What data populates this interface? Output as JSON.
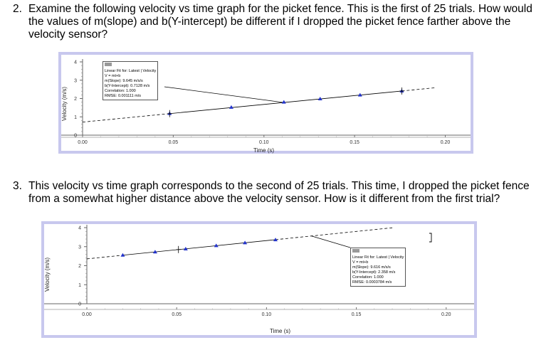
{
  "q2": {
    "number": "2.",
    "text": "Examine the following velocity vs time graph for the picket fence. This is the first of 25 trials. How would the values of m(slope) and b(Y-intercept) be different if I dropped the picket fence farther above the velocity sensor?"
  },
  "q3": {
    "number": "3.",
    "text": "This velocity vs time graph corresponds to the second of 25 trials. This time, I dropped the picket fence from a somewhat higher distance above the velocity sensor. How is it different from the first trial?"
  },
  "graph1": {
    "ylabel": "Velocity (m/s)",
    "xlabel": "Time (s)",
    "yticks": [
      "0",
      "1",
      "2",
      "3",
      "4"
    ],
    "xticks": [
      "0.00",
      "0.05",
      "0.10",
      "0.15",
      "0.20"
    ],
    "fit": {
      "title": "Linear Fit for: Latest | Velocity",
      "eq": "V = mt+b",
      "m": "m(Slope): 9.645 m/s/s",
      "b": "b(Y-Intercept): 0.7128 m/s",
      "corr": "Correlation: 1.000",
      "rmse": "RMSE: 0.001111 m/s"
    }
  },
  "graph2": {
    "ylabel": "Velocity (m/s)",
    "xlabel": "Time (s)",
    "yticks": [
      "0",
      "1",
      "2",
      "3",
      "4"
    ],
    "xticks": [
      "0.00",
      "0.05",
      "0.10",
      "0.15",
      "0.20"
    ],
    "fit": {
      "title": "Linear Fit for: Latest | Velocity",
      "eq": "V = mt+b",
      "m": "m(Slope): 9.616 m/s/s",
      "b": "b(Y-Intercept): 2.358 m/s",
      "corr": "Correlation: 1.000",
      "rmse": "RMSE: 0.0003784 m/s"
    }
  },
  "chart_data": [
    {
      "type": "line",
      "xlabel": "Time (s)",
      "ylabel": "Velocity (m/s)",
      "xlim": [
        0,
        0.21
      ],
      "ylim": [
        0,
        4
      ],
      "x": [
        0.048,
        0.082,
        0.111,
        0.131,
        0.153,
        0.176
      ],
      "series": [
        {
          "values": [
            1.18,
            1.52,
            1.8,
            1.98,
            2.19,
            2.41
          ]
        }
      ],
      "fit_line": {
        "slope": 9.645,
        "intercept": 0.7128
      }
    },
    {
      "type": "line",
      "xlabel": "Time (s)",
      "ylabel": "Velocity (m/s)",
      "xlim": [
        0,
        0.21
      ],
      "ylim": [
        0,
        4
      ],
      "x": [
        0.02,
        0.038,
        0.055,
        0.072,
        0.088,
        0.105
      ],
      "series": [
        {
          "values": [
            2.55,
            2.72,
            2.88,
            3.05,
            3.2,
            3.36
          ]
        }
      ],
      "fit_line": {
        "slope": 9.616,
        "intercept": 2.358
      }
    }
  ]
}
